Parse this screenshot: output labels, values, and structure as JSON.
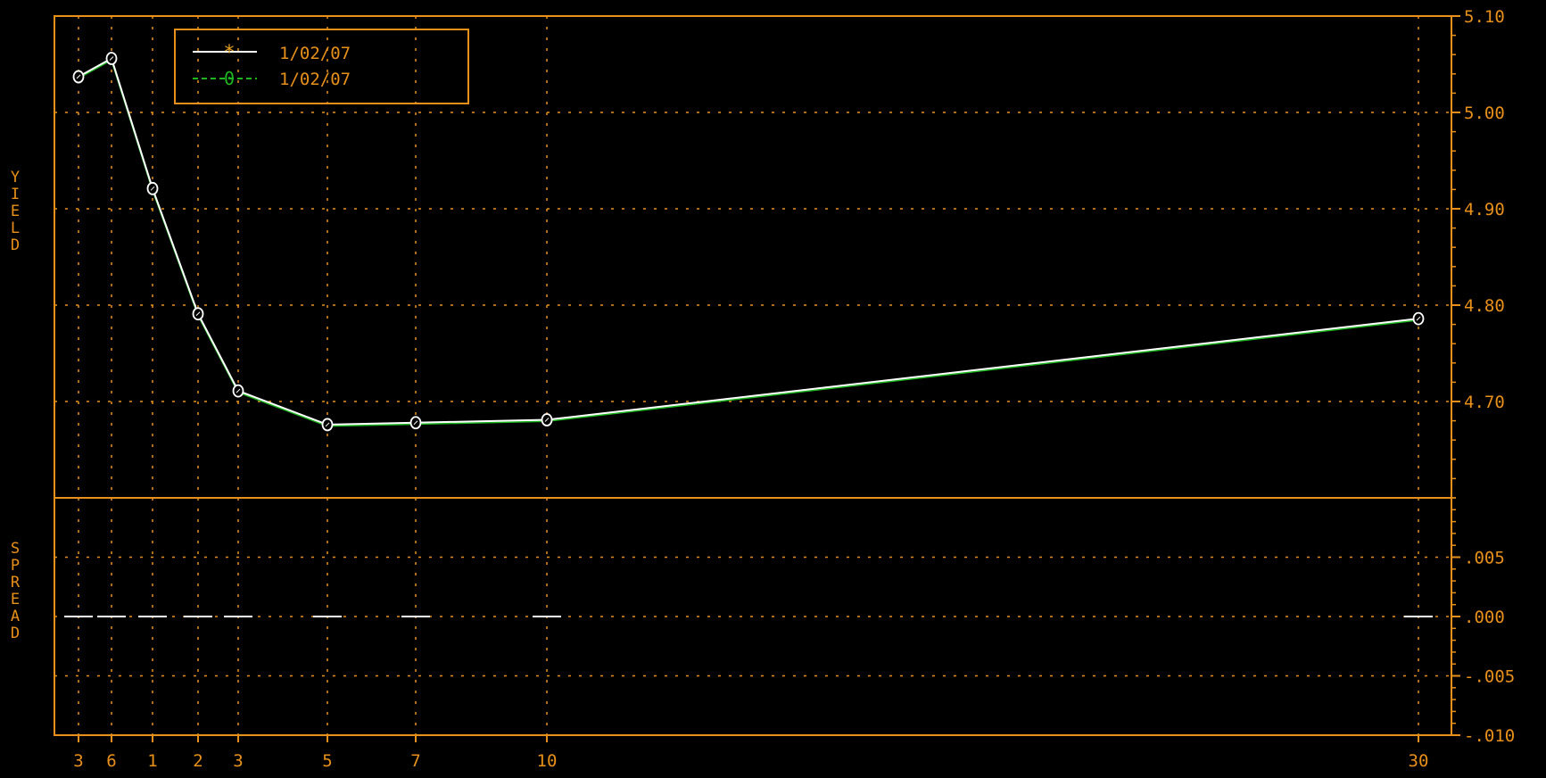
{
  "colors": {
    "background": "#000000",
    "frame": "#e8901a",
    "grid": "#e8901a",
    "text": "#e8901a",
    "legend_text": "#e8901a",
    "series_1": "#ffffff",
    "series_2": "#1db520",
    "marker": "#ffffff"
  },
  "chart_data": [
    {
      "type": "line",
      "panel": "yield",
      "ylabel": "YIELD",
      "ylim": [
        4.6,
        5.1
      ],
      "yticks": [
        5.1,
        5.0,
        4.9,
        4.8,
        4.7
      ],
      "ytick_labels": [
        "5.10",
        "5.00",
        "4.90",
        "4.80",
        "4.70"
      ],
      "y_axis_side": "right",
      "grid": true,
      "legend_position": "top-left",
      "legend": [
        {
          "marker": "*",
          "label": "1/02/07"
        },
        {
          "marker": "0",
          "label": "1/02/07"
        }
      ],
      "series": [
        {
          "name": "1/02/07",
          "marker": "star",
          "values": [
            5.037,
            5.056,
            4.921,
            4.791,
            4.711,
            4.676,
            4.678,
            4.681,
            4.786
          ]
        },
        {
          "name": "1/02/07",
          "marker": "circle",
          "values": [
            5.037,
            5.056,
            4.921,
            4.791,
            4.711,
            4.676,
            4.678,
            4.681,
            4.786
          ]
        }
      ]
    },
    {
      "type": "line",
      "panel": "spread",
      "ylabel": "SPREAD",
      "ylim": [
        -0.01,
        0.01
      ],
      "yticks": [
        0.005,
        0.0,
        -0.005,
        -0.01
      ],
      "ytick_labels": [
        ".005",
        ".000",
        "-.005",
        "-.010"
      ],
      "y_axis_side": "right",
      "grid": true,
      "series": [
        {
          "name": "spread",
          "values": [
            0,
            0,
            0,
            0,
            0,
            0,
            0,
            0,
            0
          ]
        }
      ]
    }
  ],
  "x_axis": {
    "tick_labels": [
      "3",
      "6",
      "1",
      "2",
      "3",
      "5",
      "7",
      "10",
      "30"
    ],
    "values": [
      0.25,
      0.5,
      1,
      2,
      3,
      5,
      7,
      10,
      30
    ]
  }
}
